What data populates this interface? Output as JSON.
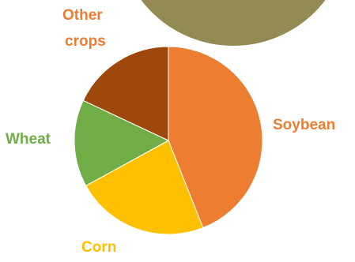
{
  "chart_data": {
    "type": "pie",
    "title": "",
    "slices": [
      {
        "label": "Soybean",
        "value": 44,
        "color": "#ED7D31"
      },
      {
        "label": "Corn",
        "value": 23,
        "color": "#FFC000"
      },
      {
        "label": "Wheat",
        "value": 15,
        "color": "#70AD47"
      },
      {
        "label": "Other crops",
        "value": 18,
        "color": "#9E480E"
      }
    ],
    "label_lines": {
      "soybean": "Soybean",
      "corn": "Corn",
      "wheat": "Wheat",
      "other_line1": "Other",
      "other_line2": "crops"
    },
    "background_circle_color": "#948A54"
  }
}
